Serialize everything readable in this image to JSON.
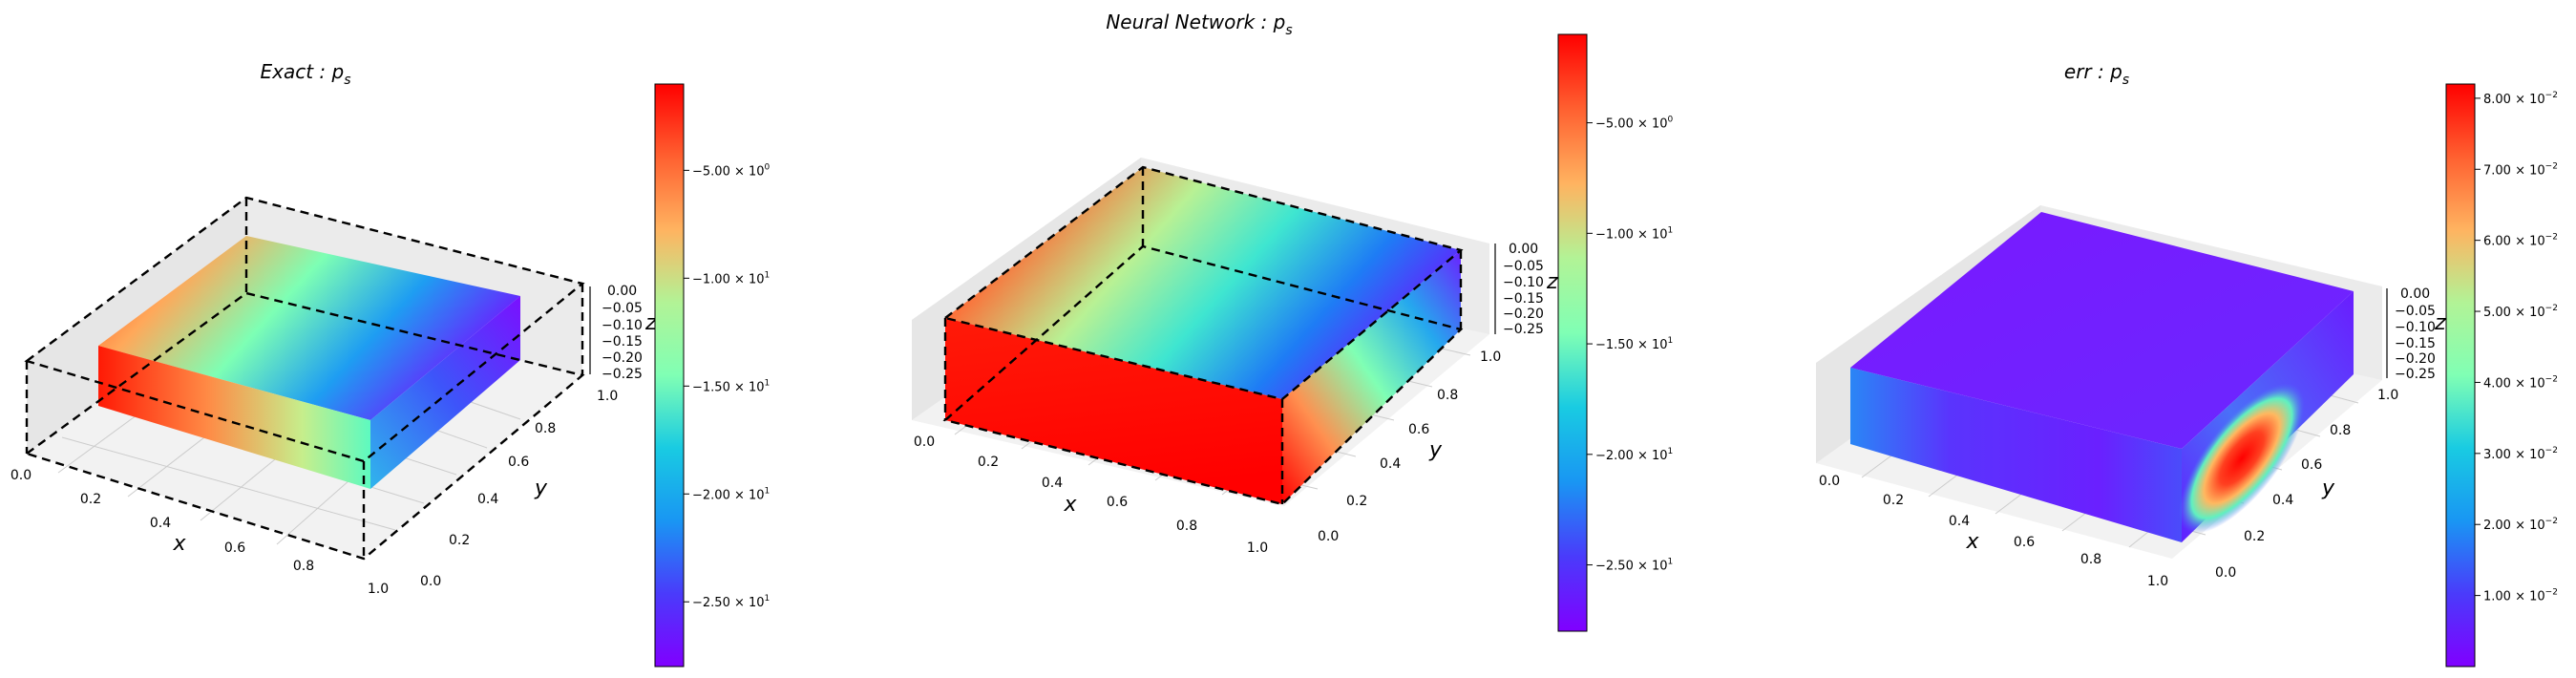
{
  "chart_data": [
    {
      "type": "heatmap",
      "subtype": "3d-scatter-box",
      "title": "Exact : p_s",
      "title_main": "Exact : p",
      "title_sub": "s",
      "xlabel": "x",
      "ylabel": "y",
      "zlabel": "z",
      "xticks": [
        "0.0",
        "0.2",
        "0.4",
        "0.6",
        "0.8",
        "1.0"
      ],
      "yticks": [
        "0.0",
        "0.2",
        "0.4",
        "0.6",
        "0.8",
        "1.0"
      ],
      "zticks": [
        "0.00",
        "−0.05",
        "−0.10",
        "−0.15",
        "−0.20",
        "−0.25"
      ],
      "colormap": "rainbow",
      "colorbar_ticks": [
        {
          "value": -5,
          "mant": "−5.00",
          "exp": "0"
        },
        {
          "value": -10,
          "mant": "−1.00",
          "exp": "1"
        },
        {
          "value": -15,
          "mant": "−1.50",
          "exp": "1"
        },
        {
          "value": -20,
          "mant": "−2.00",
          "exp": "1"
        },
        {
          "value": -25,
          "mant": "−2.50",
          "exp": "1"
        }
      ],
      "colorbar_range": [
        -28,
        -1
      ]
    },
    {
      "type": "heatmap",
      "subtype": "3d-scatter-box",
      "title": "Neural Network : p_s",
      "title_main": "Neural Network : p",
      "title_sub": "s",
      "xlabel": "x",
      "ylabel": "y",
      "zlabel": "z",
      "xticks": [
        "0.0",
        "0.2",
        "0.4",
        "0.6",
        "0.8",
        "1.0"
      ],
      "yticks": [
        "0.0",
        "0.2",
        "0.4",
        "0.6",
        "0.8",
        "1.0"
      ],
      "zticks": [
        "0.00",
        "−0.05",
        "−0.10",
        "−0.15",
        "−0.20",
        "−0.25"
      ],
      "colormap": "rainbow",
      "colorbar_ticks": [
        {
          "value": -5,
          "mant": "−5.00",
          "exp": "0"
        },
        {
          "value": -10,
          "mant": "−1.00",
          "exp": "1"
        },
        {
          "value": -15,
          "mant": "−1.50",
          "exp": "1"
        },
        {
          "value": -20,
          "mant": "−2.00",
          "exp": "1"
        },
        {
          "value": -25,
          "mant": "−2.50",
          "exp": "1"
        }
      ],
      "colorbar_range": [
        -28,
        -1
      ]
    },
    {
      "type": "heatmap",
      "subtype": "3d-scatter-box",
      "title": "err : p_s",
      "title_main": "err : p",
      "title_sub": "s",
      "xlabel": "x",
      "ylabel": "y",
      "zlabel": "z",
      "xticks": [
        "0.0",
        "0.2",
        "0.4",
        "0.6",
        "0.8",
        "1.0"
      ],
      "yticks": [
        "0.0",
        "0.2",
        "0.4",
        "0.6",
        "0.8",
        "1.0"
      ],
      "zticks": [
        "0.00",
        "−0.05",
        "−0.10",
        "−0.15",
        "−0.20",
        "−0.25"
      ],
      "colormap": "rainbow",
      "colorbar_ticks": [
        {
          "value": 0.08,
          "mant": "8.00",
          "exp": "−2"
        },
        {
          "value": 0.07,
          "mant": "7.00",
          "exp": "−2"
        },
        {
          "value": 0.06,
          "mant": "6.00",
          "exp": "−2"
        },
        {
          "value": 0.05,
          "mant": "5.00",
          "exp": "−2"
        },
        {
          "value": 0.04,
          "mant": "4.00",
          "exp": "−2"
        },
        {
          "value": 0.03,
          "mant": "3.00",
          "exp": "−2"
        },
        {
          "value": 0.02,
          "mant": "2.00",
          "exp": "−2"
        },
        {
          "value": 0.01,
          "mant": "1.00",
          "exp": "−2"
        }
      ],
      "colorbar_range": [
        0.0,
        0.082
      ]
    }
  ]
}
